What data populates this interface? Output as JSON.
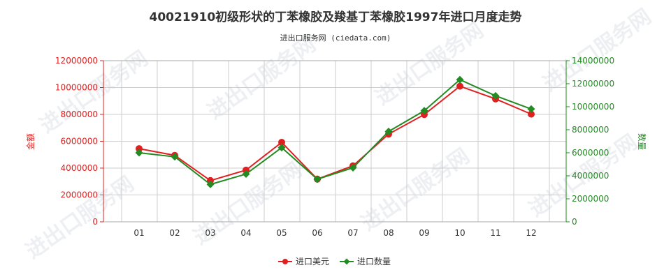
{
  "chart_data": {
    "type": "line",
    "title": "40021910初级形状的丁苯橡胶及羧基丁苯橡胶1997年进口月度走势",
    "subtitle": "进出口服务网 (ciedata.com)",
    "categories": [
      "01",
      "02",
      "03",
      "04",
      "05",
      "06",
      "07",
      "08",
      "09",
      "10",
      "11",
      "12"
    ],
    "left_axis": {
      "label": "金额",
      "ylim": [
        0,
        12000000
      ],
      "ticks": [
        "0",
        "2000000",
        "4000000",
        "6000000",
        "8000000",
        "10000000",
        "12000000"
      ],
      "color": "#e02020"
    },
    "right_axis": {
      "label": "数量",
      "ylim": [
        0,
        14000000
      ],
      "ticks": [
        "0",
        "2000000",
        "4000000",
        "6000000",
        "8000000",
        "10000000",
        "12000000",
        "14000000"
      ],
      "color": "#228b22"
    },
    "series": [
      {
        "name": "进口美元",
        "axis": "left",
        "color": "#e02020",
        "marker": "circle",
        "values": [
          5450000,
          4950000,
          3070000,
          3850000,
          5920000,
          3180000,
          4170000,
          6530000,
          7990000,
          10100000,
          9150000,
          8020000
        ]
      },
      {
        "name": "进口数量",
        "axis": "right",
        "color": "#228b22",
        "marker": "diamond",
        "values": [
          6000000,
          5650000,
          3250000,
          4150000,
          6450000,
          3700000,
          4700000,
          7850000,
          9650000,
          12350000,
          10950000,
          9800000
        ]
      }
    ],
    "grid": true,
    "legend_position": "bottom-center"
  },
  "watermark_text": "进出口服务网"
}
